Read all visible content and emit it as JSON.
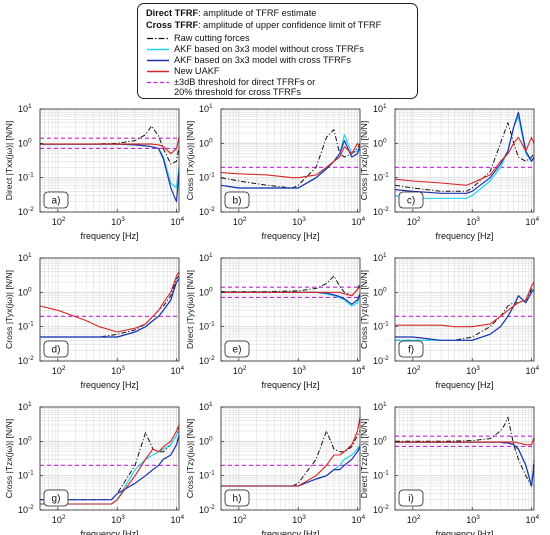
{
  "legend": {
    "line1_bold": "Direct TFRF",
    "line1_rest": ": amplitude of TFRF estimate",
    "line2_bold": "Cross TFRF",
    "line2_rest": ": amplitude of upper confidence limit of TFRF",
    "entries": [
      {
        "label": "Raw cutting forces",
        "color": "#111111",
        "style": "dashdot"
      },
      {
        "label": "AKF based on 3x3 model without cross TFRFs",
        "color": "#22d3ee",
        "style": "solid"
      },
      {
        "label": "AKF based on 3x3 model with cross TFRFs",
        "color": "#1f2fb0",
        "style": "solid"
      },
      {
        "label": "New UAKF",
        "color": "#d62728",
        "style": "solid"
      },
      {
        "label": "±3dB threshold for direct TFRFs or",
        "color": "#c026d3",
        "style": "dashed"
      },
      {
        "label": "20% threshold for cross TFRFs",
        "color": "",
        "style": "none"
      }
    ]
  },
  "chart_data": [
    {
      "panel": "a)",
      "type": "line",
      "kind": "Direct",
      "ylabel": "Direct |Txx(jω)| [N/N]",
      "sub": "xx",
      "xlabel": "frequency [Hz]",
      "xlim": [
        50,
        11000
      ],
      "ylim": [
        0.01,
        10
      ],
      "xscale": "log",
      "yscale": "log",
      "grid": true,
      "thresholds": [
        1.41,
        0.71
      ],
      "x": [
        50,
        100,
        300,
        1000,
        2000,
        3000,
        3800,
        5000,
        6000,
        8000,
        10000,
        11000
      ],
      "series": [
        {
          "style": "raw",
          "values": [
            0.95,
            0.95,
            0.95,
            1.0,
            1.2,
            1.8,
            3.2,
            1.6,
            0.7,
            0.25,
            0.3,
            0.8
          ]
        },
        {
          "style": "akf_no",
          "values": [
            0.95,
            0.95,
            0.95,
            0.95,
            0.9,
            0.85,
            0.8,
            0.7,
            0.4,
            0.07,
            0.05,
            0.2
          ]
        },
        {
          "style": "akf_with",
          "values": [
            0.95,
            0.95,
            0.95,
            0.95,
            0.9,
            0.85,
            0.8,
            0.7,
            0.35,
            0.05,
            0.02,
            0.15
          ]
        },
        {
          "style": "uakf",
          "values": [
            0.95,
            0.95,
            0.95,
            0.95,
            0.95,
            0.95,
            0.95,
            0.9,
            0.8,
            0.5,
            0.7,
            1.5
          ]
        }
      ]
    },
    {
      "panel": "b)",
      "type": "line",
      "kind": "Cross",
      "ylabel": "Cross |Txy(jω)| [N/N]",
      "sub": "xy",
      "xlabel": "frequency [Hz]",
      "xlim": [
        50,
        11000
      ],
      "ylim": [
        0.01,
        10
      ],
      "xscale": "log",
      "yscale": "log",
      "grid": true,
      "thresholds": [
        0.2
      ],
      "x": [
        50,
        100,
        300,
        800,
        1000,
        2000,
        3000,
        4000,
        5000,
        6000,
        8000,
        10000,
        11000
      ],
      "series": [
        {
          "style": "raw",
          "values": [
            0.1,
            0.08,
            0.06,
            0.05,
            0.06,
            0.2,
            1.5,
            2.5,
            0.5,
            0.4,
            0.5,
            0.7,
            1.0
          ]
        },
        {
          "style": "akf_no",
          "values": [
            0.06,
            0.05,
            0.05,
            0.05,
            0.05,
            0.1,
            0.2,
            0.3,
            0.5,
            1.8,
            0.5,
            0.6,
            0.8
          ]
        },
        {
          "style": "akf_with",
          "values": [
            0.06,
            0.05,
            0.05,
            0.05,
            0.05,
            0.1,
            0.18,
            0.3,
            0.5,
            1.2,
            0.4,
            0.5,
            0.8
          ]
        },
        {
          "style": "uakf",
          "values": [
            0.14,
            0.13,
            0.12,
            0.1,
            0.1,
            0.12,
            0.2,
            0.3,
            0.4,
            0.8,
            0.5,
            1.0,
            0.8
          ]
        }
      ]
    },
    {
      "panel": "c)",
      "type": "line",
      "kind": "Cross",
      "ylabel": "Cross |Txz(jω)| [N/N]",
      "sub": "xz",
      "xlabel": "frequency [Hz]",
      "xlim": [
        50,
        11000
      ],
      "ylim": [
        0.01,
        10
      ],
      "xscale": "log",
      "yscale": "log",
      "grid": true,
      "thresholds": [
        0.2
      ],
      "x": [
        50,
        100,
        300,
        800,
        1000,
        2000,
        3000,
        4000,
        5000,
        6000,
        8000,
        10000,
        11000
      ],
      "series": [
        {
          "style": "raw",
          "values": [
            0.06,
            0.05,
            0.04,
            0.04,
            0.05,
            0.15,
            1.0,
            4.0,
            1.0,
            0.4,
            0.3,
            0.4,
            0.5
          ]
        },
        {
          "style": "akf_no",
          "values": [
            0.03,
            0.025,
            0.025,
            0.025,
            0.03,
            0.08,
            0.2,
            0.6,
            3.0,
            6.0,
            0.5,
            0.3,
            0.4
          ]
        },
        {
          "style": "akf_with",
          "values": [
            0.045,
            0.04,
            0.035,
            0.035,
            0.04,
            0.1,
            0.25,
            0.6,
            3.0,
            8.0,
            0.6,
            0.3,
            0.4
          ]
        },
        {
          "style": "uakf",
          "values": [
            0.09,
            0.08,
            0.07,
            0.06,
            0.07,
            0.12,
            0.3,
            0.5,
            1.0,
            1.5,
            0.6,
            1.5,
            1.0
          ]
        }
      ]
    },
    {
      "panel": "d)",
      "type": "line",
      "kind": "Cross",
      "ylabel": "Cross |Tyx(jω)| [N/N]",
      "sub": "yx",
      "xlabel": "frequency [Hz]",
      "xlim": [
        50,
        11000
      ],
      "ylim": [
        0.01,
        10
      ],
      "xscale": "log",
      "yscale": "log",
      "grid": true,
      "thresholds": [
        0.2
      ],
      "x": [
        50,
        100,
        300,
        500,
        1000,
        2000,
        3000,
        4000,
        5000,
        6000,
        8000,
        10000,
        11000
      ],
      "series": [
        {
          "style": "raw",
          "values": [
            0.05,
            0.05,
            0.05,
            0.05,
            0.06,
            0.08,
            0.12,
            0.2,
            0.3,
            0.4,
            0.8,
            2.5,
            3.0
          ]
        },
        {
          "style": "akf_no",
          "values": [
            0.05,
            0.05,
            0.05,
            0.05,
            0.05,
            0.07,
            0.1,
            0.15,
            0.2,
            0.3,
            0.6,
            2.0,
            2.5
          ]
        },
        {
          "style": "akf_with",
          "values": [
            0.05,
            0.05,
            0.05,
            0.05,
            0.05,
            0.07,
            0.1,
            0.15,
            0.2,
            0.3,
            0.6,
            2.0,
            2.5
          ]
        },
        {
          "style": "uakf",
          "values": [
            0.4,
            0.3,
            0.15,
            0.1,
            0.07,
            0.09,
            0.12,
            0.2,
            0.3,
            0.5,
            1.0,
            3.0,
            4.0
          ]
        }
      ]
    },
    {
      "panel": "e)",
      "type": "line",
      "kind": "Direct",
      "ylabel": "Direct |Tyy(jω)| [N/N]",
      "sub": "yy",
      "xlabel": "frequency [Hz]",
      "xlim": [
        50,
        11000
      ],
      "ylim": [
        0.01,
        10
      ],
      "xscale": "log",
      "yscale": "log",
      "grid": true,
      "thresholds": [
        1.41,
        0.71
      ],
      "x": [
        50,
        100,
        300,
        1000,
        2000,
        3000,
        4000,
        5000,
        6000,
        8000,
        10000,
        11000
      ],
      "series": [
        {
          "style": "raw",
          "values": [
            1.05,
            1.05,
            1.05,
            1.1,
            1.3,
            1.8,
            3.0,
            1.5,
            1.0,
            0.8,
            1.2,
            1.8
          ]
        },
        {
          "style": "akf_no",
          "values": [
            1.0,
            1.0,
            1.0,
            1.0,
            1.0,
            0.9,
            0.8,
            0.7,
            0.6,
            0.4,
            0.5,
            0.8
          ]
        },
        {
          "style": "akf_with",
          "values": [
            1.0,
            1.0,
            1.0,
            1.0,
            1.0,
            0.95,
            0.85,
            0.75,
            0.65,
            0.45,
            0.6,
            0.9
          ]
        },
        {
          "style": "uakf",
          "values": [
            1.0,
            1.0,
            1.0,
            1.0,
            1.0,
            1.0,
            1.0,
            1.0,
            0.9,
            0.8,
            1.2,
            1.5
          ]
        }
      ]
    },
    {
      "panel": "f)",
      "type": "line",
      "kind": "Cross",
      "ylabel": "Cross |Tyz(jω)| [N/N]",
      "sub": "yz",
      "xlabel": "frequency [Hz]",
      "xlim": [
        50,
        11000
      ],
      "ylim": [
        0.01,
        10
      ],
      "xscale": "log",
      "yscale": "log",
      "grid": true,
      "thresholds": [
        0.2
      ],
      "x": [
        50,
        100,
        300,
        500,
        1000,
        2000,
        3000,
        4000,
        5000,
        6000,
        8000,
        10000,
        11000
      ],
      "series": [
        {
          "style": "raw",
          "values": [
            0.04,
            0.04,
            0.04,
            0.04,
            0.05,
            0.1,
            0.2,
            0.4,
            0.5,
            0.5,
            0.6,
            1.2,
            1.5
          ]
        },
        {
          "style": "akf_no",
          "values": [
            0.04,
            0.04,
            0.04,
            0.04,
            0.04,
            0.06,
            0.1,
            0.2,
            0.4,
            0.8,
            0.5,
            1.0,
            1.2
          ]
        },
        {
          "style": "akf_with",
          "values": [
            0.05,
            0.05,
            0.04,
            0.04,
            0.04,
            0.06,
            0.1,
            0.2,
            0.4,
            0.8,
            0.5,
            1.0,
            1.2
          ]
        },
        {
          "style": "uakf",
          "values": [
            0.11,
            0.11,
            0.11,
            0.1,
            0.1,
            0.12,
            0.2,
            0.3,
            0.4,
            0.5,
            0.6,
            1.5,
            2.0
          ]
        }
      ]
    },
    {
      "panel": "g)",
      "type": "line",
      "kind": "Cross",
      "ylabel": "Cross |Tzx(jω)| [N/N]",
      "sub": "zx",
      "xlabel": "frequency [Hz]",
      "xlim": [
        50,
        11000
      ],
      "ylim": [
        0.01,
        10
      ],
      "xscale": "log",
      "yscale": "log",
      "grid": true,
      "thresholds": [
        0.2
      ],
      "x": [
        50,
        100,
        300,
        800,
        1000,
        2000,
        3000,
        4000,
        5000,
        6000,
        8000,
        10000,
        11000
      ],
      "series": [
        {
          "style": "raw",
          "values": [
            0.02,
            0.02,
            0.02,
            0.02,
            0.03,
            0.2,
            1.8,
            0.6,
            0.5,
            0.5,
            0.8,
            1.5,
            2.5
          ]
        },
        {
          "style": "akf_no",
          "values": [
            0.015,
            0.015,
            0.015,
            0.015,
            0.02,
            0.15,
            0.3,
            0.4,
            0.5,
            0.6,
            0.8,
            1.5,
            2.0
          ]
        },
        {
          "style": "akf_with",
          "values": [
            0.02,
            0.02,
            0.02,
            0.02,
            0.03,
            0.06,
            0.1,
            0.15,
            0.2,
            0.3,
            0.4,
            0.8,
            1.5
          ]
        },
        {
          "style": "uakf",
          "values": [
            0.015,
            0.015,
            0.015,
            0.015,
            0.02,
            0.1,
            0.3,
            0.6,
            0.5,
            0.7,
            1.0,
            2.0,
            3.0
          ]
        }
      ]
    },
    {
      "panel": "h)",
      "type": "line",
      "kind": "Cross",
      "ylabel": "Cross |Tzy(jω)| [N/N]",
      "sub": "zy",
      "xlabel": "frequency [Hz]",
      "xlim": [
        50,
        11000
      ],
      "ylim": [
        0.01,
        10
      ],
      "xscale": "log",
      "yscale": "log",
      "grid": true,
      "thresholds": [
        0.2
      ],
      "x": [
        50,
        100,
        300,
        800,
        1000,
        2000,
        3000,
        4000,
        5000,
        6000,
        8000,
        10000,
        11000
      ],
      "series": [
        {
          "style": "raw",
          "values": [
            0.05,
            0.05,
            0.05,
            0.05,
            0.06,
            0.3,
            2.0,
            0.6,
            0.5,
            0.5,
            0.7,
            1.5,
            2.0
          ]
        },
        {
          "style": "akf_no",
          "values": [
            0.05,
            0.05,
            0.05,
            0.05,
            0.05,
            0.08,
            0.1,
            0.15,
            0.2,
            0.3,
            0.4,
            0.6,
            0.8
          ]
        },
        {
          "style": "akf_with",
          "values": [
            0.05,
            0.05,
            0.05,
            0.05,
            0.05,
            0.08,
            0.1,
            0.15,
            0.15,
            0.2,
            0.3,
            0.5,
            0.7
          ]
        },
        {
          "style": "uakf",
          "values": [
            0.05,
            0.05,
            0.05,
            0.05,
            0.05,
            0.1,
            0.2,
            0.4,
            0.4,
            0.5,
            0.8,
            2.0,
            5.0
          ]
        }
      ]
    },
    {
      "panel": "i)",
      "type": "line",
      "kind": "Direct",
      "ylabel": "Direct |Tzz(jω)| [N/N]",
      "sub": "zz",
      "xlabel": "frequency [Hz]",
      "xlim": [
        50,
        11000
      ],
      "ylim": [
        0.01,
        10
      ],
      "xscale": "log",
      "yscale": "log",
      "grid": true,
      "thresholds": [
        1.41,
        0.71
      ],
      "x": [
        50,
        100,
        300,
        1000,
        2000,
        3000,
        3500,
        4000,
        5000,
        6000,
        8000,
        10000,
        11000
      ],
      "series": [
        {
          "style": "raw",
          "values": [
            1.0,
            1.0,
            1.0,
            1.05,
            1.2,
            2.0,
            3.0,
            5.0,
            0.8,
            0.3,
            0.1,
            0.05,
            0.3
          ]
        },
        {
          "style": "akf_no",
          "values": [
            0.95,
            0.95,
            0.95,
            0.95,
            0.95,
            0.95,
            0.9,
            0.9,
            0.8,
            0.6,
            0.2,
            0.05,
            0.2
          ]
        },
        {
          "style": "akf_with",
          "values": [
            0.95,
            0.95,
            0.95,
            0.95,
            0.95,
            0.95,
            0.9,
            0.9,
            0.8,
            0.6,
            0.2,
            0.05,
            0.2
          ]
        },
        {
          "style": "uakf",
          "values": [
            0.95,
            0.95,
            0.95,
            0.95,
            0.95,
            0.95,
            0.95,
            0.95,
            0.95,
            0.9,
            0.8,
            0.8,
            1.3
          ]
        }
      ]
    }
  ],
  "axis_ticks": {
    "x": [
      {
        "v": 100,
        "base": "10",
        "exp": "2"
      },
      {
        "v": 1000,
        "base": "10",
        "exp": "3"
      },
      {
        "v": 10000,
        "base": "10",
        "exp": "4"
      }
    ],
    "y": [
      {
        "v": 0.01,
        "base": "10",
        "exp": "-2"
      },
      {
        "v": 0.1,
        "base": "10",
        "exp": "-1"
      },
      {
        "v": 1,
        "base": "10",
        "exp": "0"
      },
      {
        "v": 10,
        "base": "10",
        "exp": "1"
      }
    ]
  },
  "colors": {
    "raw": "#111111",
    "akf_no": "#22d3ee",
    "akf_with": "#1f2fb0",
    "uakf": "#d62728",
    "threshold": "#c026d3",
    "grid": "#d9d9d9"
  }
}
